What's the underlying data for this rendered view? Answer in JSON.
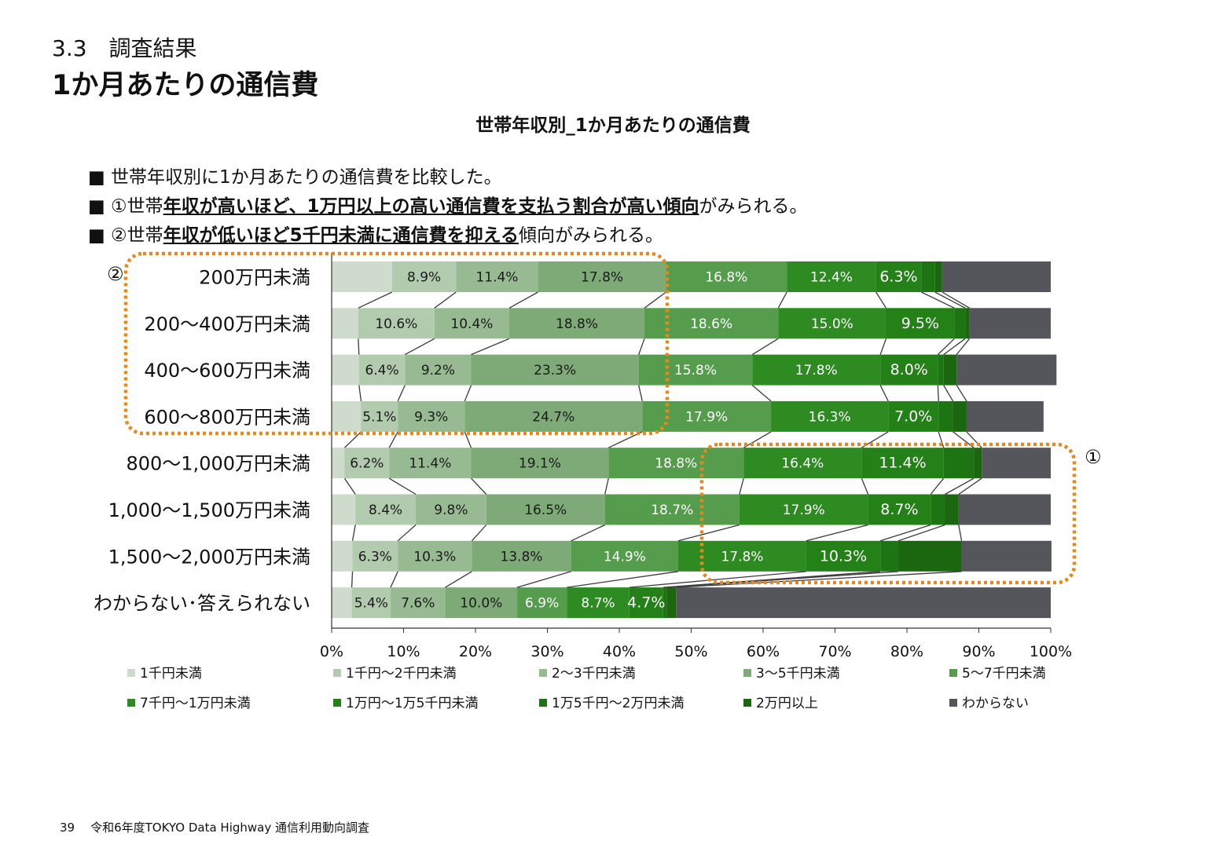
{
  "section_label": "3.3　調査結果",
  "page_heading": "1か月あたりの通信費",
  "chart_title": "世帯年収別_1か月あたりの通信費",
  "bullets": [
    {
      "prefix": "■ 世帯年収別に1か月あたりの通信費を比較した。",
      "highlight": "",
      "suffix": ""
    },
    {
      "prefix": "■ ①世帯",
      "highlight": "年収が高いほど、1万円以上の高い通信費を支払う割合が高い傾向",
      "suffix": "がみられる。"
    },
    {
      "prefix": "■ ②世帯",
      "highlight": "年収が低いほど5千円未満に通信費を抑える",
      "suffix": "傾向がみられる。"
    }
  ],
  "callouts": [
    "①",
    "②"
  ],
  "footer": {
    "page_number": "39",
    "text": "令和6年度TOKYO Data Highway 通信利用動向調査"
  },
  "colors": {
    "series": [
      "#cfdccd",
      "#b2cbae",
      "#97ba92",
      "#7daa76",
      "#559d4d",
      "#2d8b22",
      "#238117",
      "#1d7412",
      "#1a6710",
      "#54565b"
    ],
    "highlight_box": "#e5891d"
  },
  "chart_data": {
    "type": "bar",
    "orientation": "horizontal",
    "stacked": true,
    "categories": [
      "200万円未満",
      "200〜400万円未満",
      "400〜600万円未満",
      "600〜800万円未満",
      "800〜1,000万円未満",
      "1,000〜1,500万円未満",
      "1,500〜2,000万円未満",
      "わからない･答えられない"
    ],
    "series": [
      {
        "name": "1千円未満",
        "values": [
          8.4,
          3.7,
          3.8,
          4.1,
          1.8,
          3.3,
          2.9,
          2.8
        ]
      },
      {
        "name": "1千円〜2千円未満",
        "values": [
          8.9,
          10.6,
          6.4,
          5.1,
          6.2,
          8.4,
          6.3,
          5.4
        ]
      },
      {
        "name": "2〜3千円未満",
        "values": [
          11.4,
          10.4,
          9.2,
          9.3,
          11.4,
          9.8,
          10.3,
          7.6
        ]
      },
      {
        "name": "3〜5千円未満",
        "values": [
          17.8,
          18.8,
          23.3,
          24.7,
          19.1,
          16.5,
          13.8,
          10.0
        ]
      },
      {
        "name": "5〜7千円未満",
        "values": [
          16.8,
          18.6,
          15.8,
          17.9,
          18.8,
          18.7,
          14.9,
          6.9
        ]
      },
      {
        "name": "7千円〜1万円未満",
        "values": [
          12.4,
          15.0,
          17.8,
          16.3,
          16.4,
          17.9,
          17.8,
          8.7
        ]
      },
      {
        "name": "1万円〜1万5千円未満",
        "values": [
          6.3,
          9.5,
          8.0,
          7.0,
          11.4,
          8.7,
          10.3,
          4.7
        ]
      },
      {
        "name": "1万5千円〜2万円未満",
        "values": [
          1.9,
          1.5,
          0.8,
          2.0,
          4.2,
          2.0,
          2.5,
          0.5
        ]
      },
      {
        "name": "2万円以上",
        "values": [
          1.0,
          0.6,
          1.8,
          1.9,
          1.1,
          1.9,
          8.8,
          1.3
        ]
      },
      {
        "name": "わからない",
        "values": [
          15.1,
          11.3,
          13.9,
          10.7,
          9.6,
          12.8,
          12.5,
          52.1
        ]
      }
    ],
    "data_labels": [
      [
        "",
        "8.9%",
        "11.4%",
        "17.8%",
        "16.8%",
        "12.4%",
        "6.3%",
        "",
        "",
        ""
      ],
      [
        "",
        "10.6%",
        "10.4%",
        "18.8%",
        "18.6%",
        "15.0%",
        "9.5%",
        "",
        "",
        ""
      ],
      [
        "",
        "6.4%",
        "9.2%",
        "23.3%",
        "15.8%",
        "17.8%",
        "8.0%",
        "",
        "",
        ""
      ],
      [
        "",
        "5.1%",
        "9.3%",
        "24.7%",
        "17.9%",
        "16.3%",
        "7.0%",
        "",
        "",
        ""
      ],
      [
        "",
        "6.2%",
        "11.4%",
        "19.1%",
        "18.8%",
        "16.4%",
        "11.4%",
        "",
        "",
        ""
      ],
      [
        "",
        "8.4%",
        "9.8%",
        "16.5%",
        "18.7%",
        "17.9%",
        "8.7%",
        "",
        "",
        ""
      ],
      [
        "",
        "6.3%",
        "10.3%",
        "13.8%",
        "14.9%",
        "17.8%",
        "10.3%",
        "",
        "",
        ""
      ],
      [
        "",
        "5.4%",
        "7.6%",
        "10.0%",
        "6.9%",
        "8.7%",
        "4.7%",
        "",
        "",
        ""
      ]
    ],
    "x_ticks": [
      "0%",
      "10%",
      "20%",
      "30%",
      "40%",
      "50%",
      "60%",
      "70%",
      "80%",
      "90%",
      "100%"
    ],
    "xlim": [
      0,
      100
    ],
    "series_lines": true,
    "legend": "bottom"
  }
}
